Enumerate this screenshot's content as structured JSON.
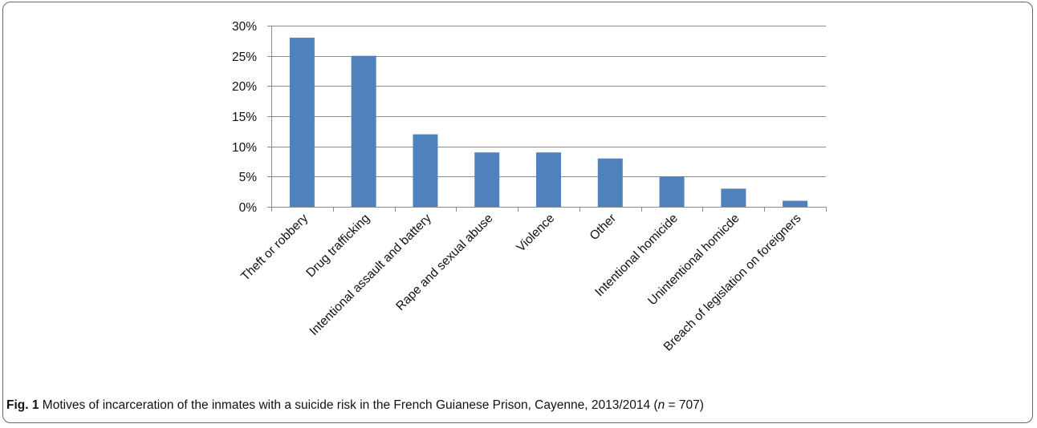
{
  "chart_data": {
    "type": "bar",
    "categories": [
      "Theft or robbery",
      "Drug trafficking",
      "Intentional assault and battery",
      "Rape and sexual abuse",
      "Violence",
      "Other",
      "Intentional homicide",
      "Unintentional homicde",
      "Breach of legislation on foreigners"
    ],
    "values": [
      28,
      25,
      12,
      9,
      9,
      8,
      5,
      3,
      1
    ],
    "ylim": [
      0,
      30
    ],
    "yticks": [
      "0%",
      "5%",
      "10%",
      "15%",
      "20%",
      "25%",
      "30%"
    ],
    "grid": true,
    "legend": "none",
    "bar_color": "#4f81bd"
  },
  "caption": {
    "label": "Fig. 1",
    "text_before": " Motives of incarceration of the inmates with a suicide risk in the French Guianese Prison, Cayenne, 2013/2014 (",
    "n_symbol": "n",
    "text_after": " = 707)"
  }
}
